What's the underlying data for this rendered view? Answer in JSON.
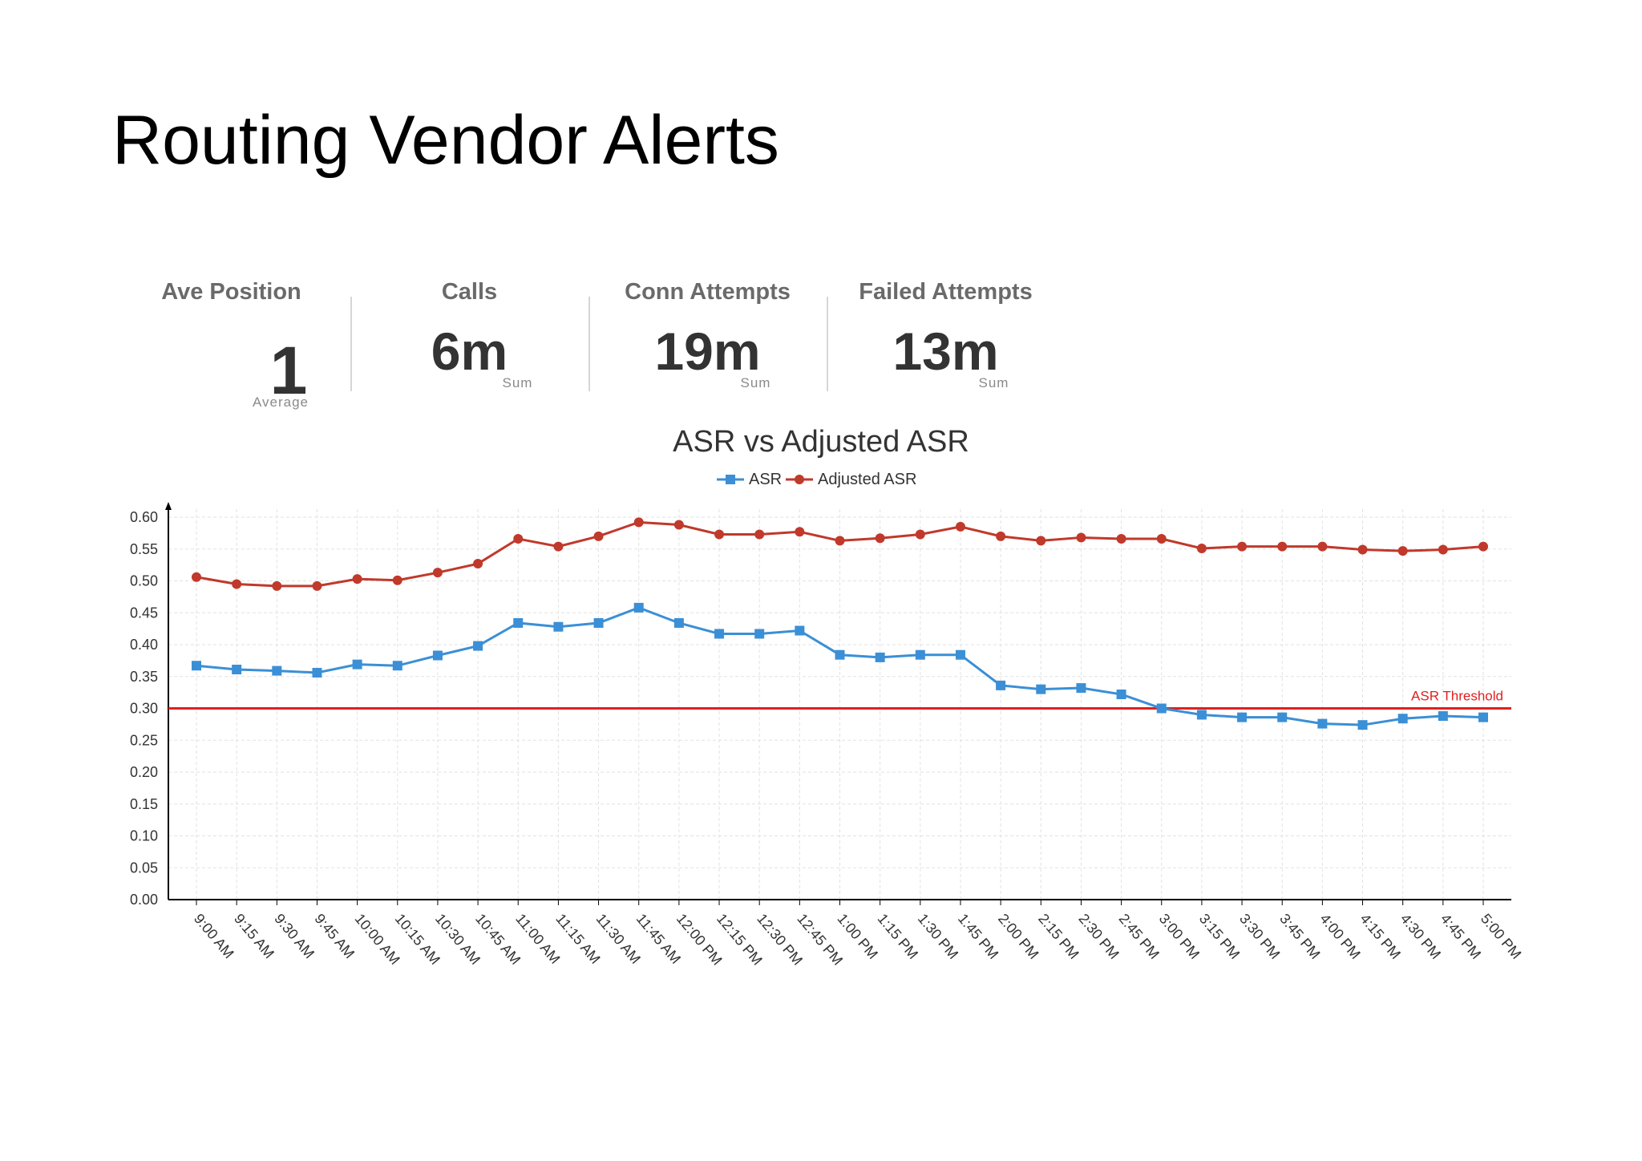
{
  "page": {
    "title": "Routing Vendor Alerts"
  },
  "kpis": [
    {
      "label": "Ave Position",
      "value": "1",
      "sub": "Average"
    },
    {
      "label": "Calls",
      "value": "6m",
      "sub": "Sum"
    },
    {
      "label": "Conn Attempts",
      "value": "19m",
      "sub": "Sum"
    },
    {
      "label": "Failed Attempts",
      "value": "13m",
      "sub": "Sum"
    }
  ],
  "colors": {
    "asr": "#3b8fd6",
    "adjusted_asr": "#c0392b",
    "threshold": "#e02020",
    "grid": "#e2e2e2",
    "axis": "#000000"
  },
  "chart_data": {
    "type": "line",
    "title": "ASR vs Adjusted ASR",
    "xlabel": "",
    "ylabel": "",
    "ylim": [
      0,
      0.6
    ],
    "yticks": [
      "0.00",
      "0.05",
      "0.10",
      "0.15",
      "0.20",
      "0.25",
      "0.30",
      "0.35",
      "0.40",
      "0.45",
      "0.50",
      "0.55",
      "0.60"
    ],
    "grid": true,
    "legend_position": "top-center",
    "categories": [
      "9:00 AM",
      "9:15 AM",
      "9:30 AM",
      "9:45 AM",
      "10:00 AM",
      "10:15 AM",
      "10:30 AM",
      "10:45 AM",
      "11:00 AM",
      "11:15 AM",
      "11:30 AM",
      "11:45 AM",
      "12:00 PM",
      "12:15 PM",
      "12:30 PM",
      "12:45 PM",
      "1:00 PM",
      "1:15 PM",
      "1:30 PM",
      "1:45 PM",
      "2:00 PM",
      "2:15 PM",
      "2:30 PM",
      "2:45 PM",
      "3:00 PM",
      "3:15 PM",
      "3:30 PM",
      "3:45 PM",
      "4:00 PM",
      "4:15 PM",
      "4:30 PM",
      "4:45 PM",
      "5:00 PM"
    ],
    "series": [
      {
        "name": "ASR",
        "marker": "square",
        "values": [
          0.367,
          0.361,
          0.359,
          0.356,
          0.369,
          0.367,
          0.383,
          0.398,
          0.434,
          0.428,
          0.434,
          0.458,
          0.434,
          0.417,
          0.417,
          0.422,
          0.384,
          0.38,
          0.384,
          0.384,
          0.336,
          0.33,
          0.332,
          0.322,
          0.3,
          0.29,
          0.286,
          0.286,
          0.276,
          0.274,
          0.284,
          0.288,
          0.286
        ]
      },
      {
        "name": "Adjusted ASR",
        "marker": "circle",
        "values": [
          0.506,
          0.495,
          0.492,
          0.492,
          0.503,
          0.501,
          0.513,
          0.527,
          0.566,
          0.554,
          0.57,
          0.592,
          0.588,
          0.573,
          0.573,
          0.577,
          0.563,
          0.567,
          0.573,
          0.585,
          0.57,
          0.563,
          0.568,
          0.566,
          0.566,
          0.551,
          0.554,
          0.554,
          0.554,
          0.549,
          0.547,
          0.549,
          0.554
        ]
      }
    ],
    "threshold": {
      "label": "ASR Threshold",
      "value": 0.3
    }
  }
}
